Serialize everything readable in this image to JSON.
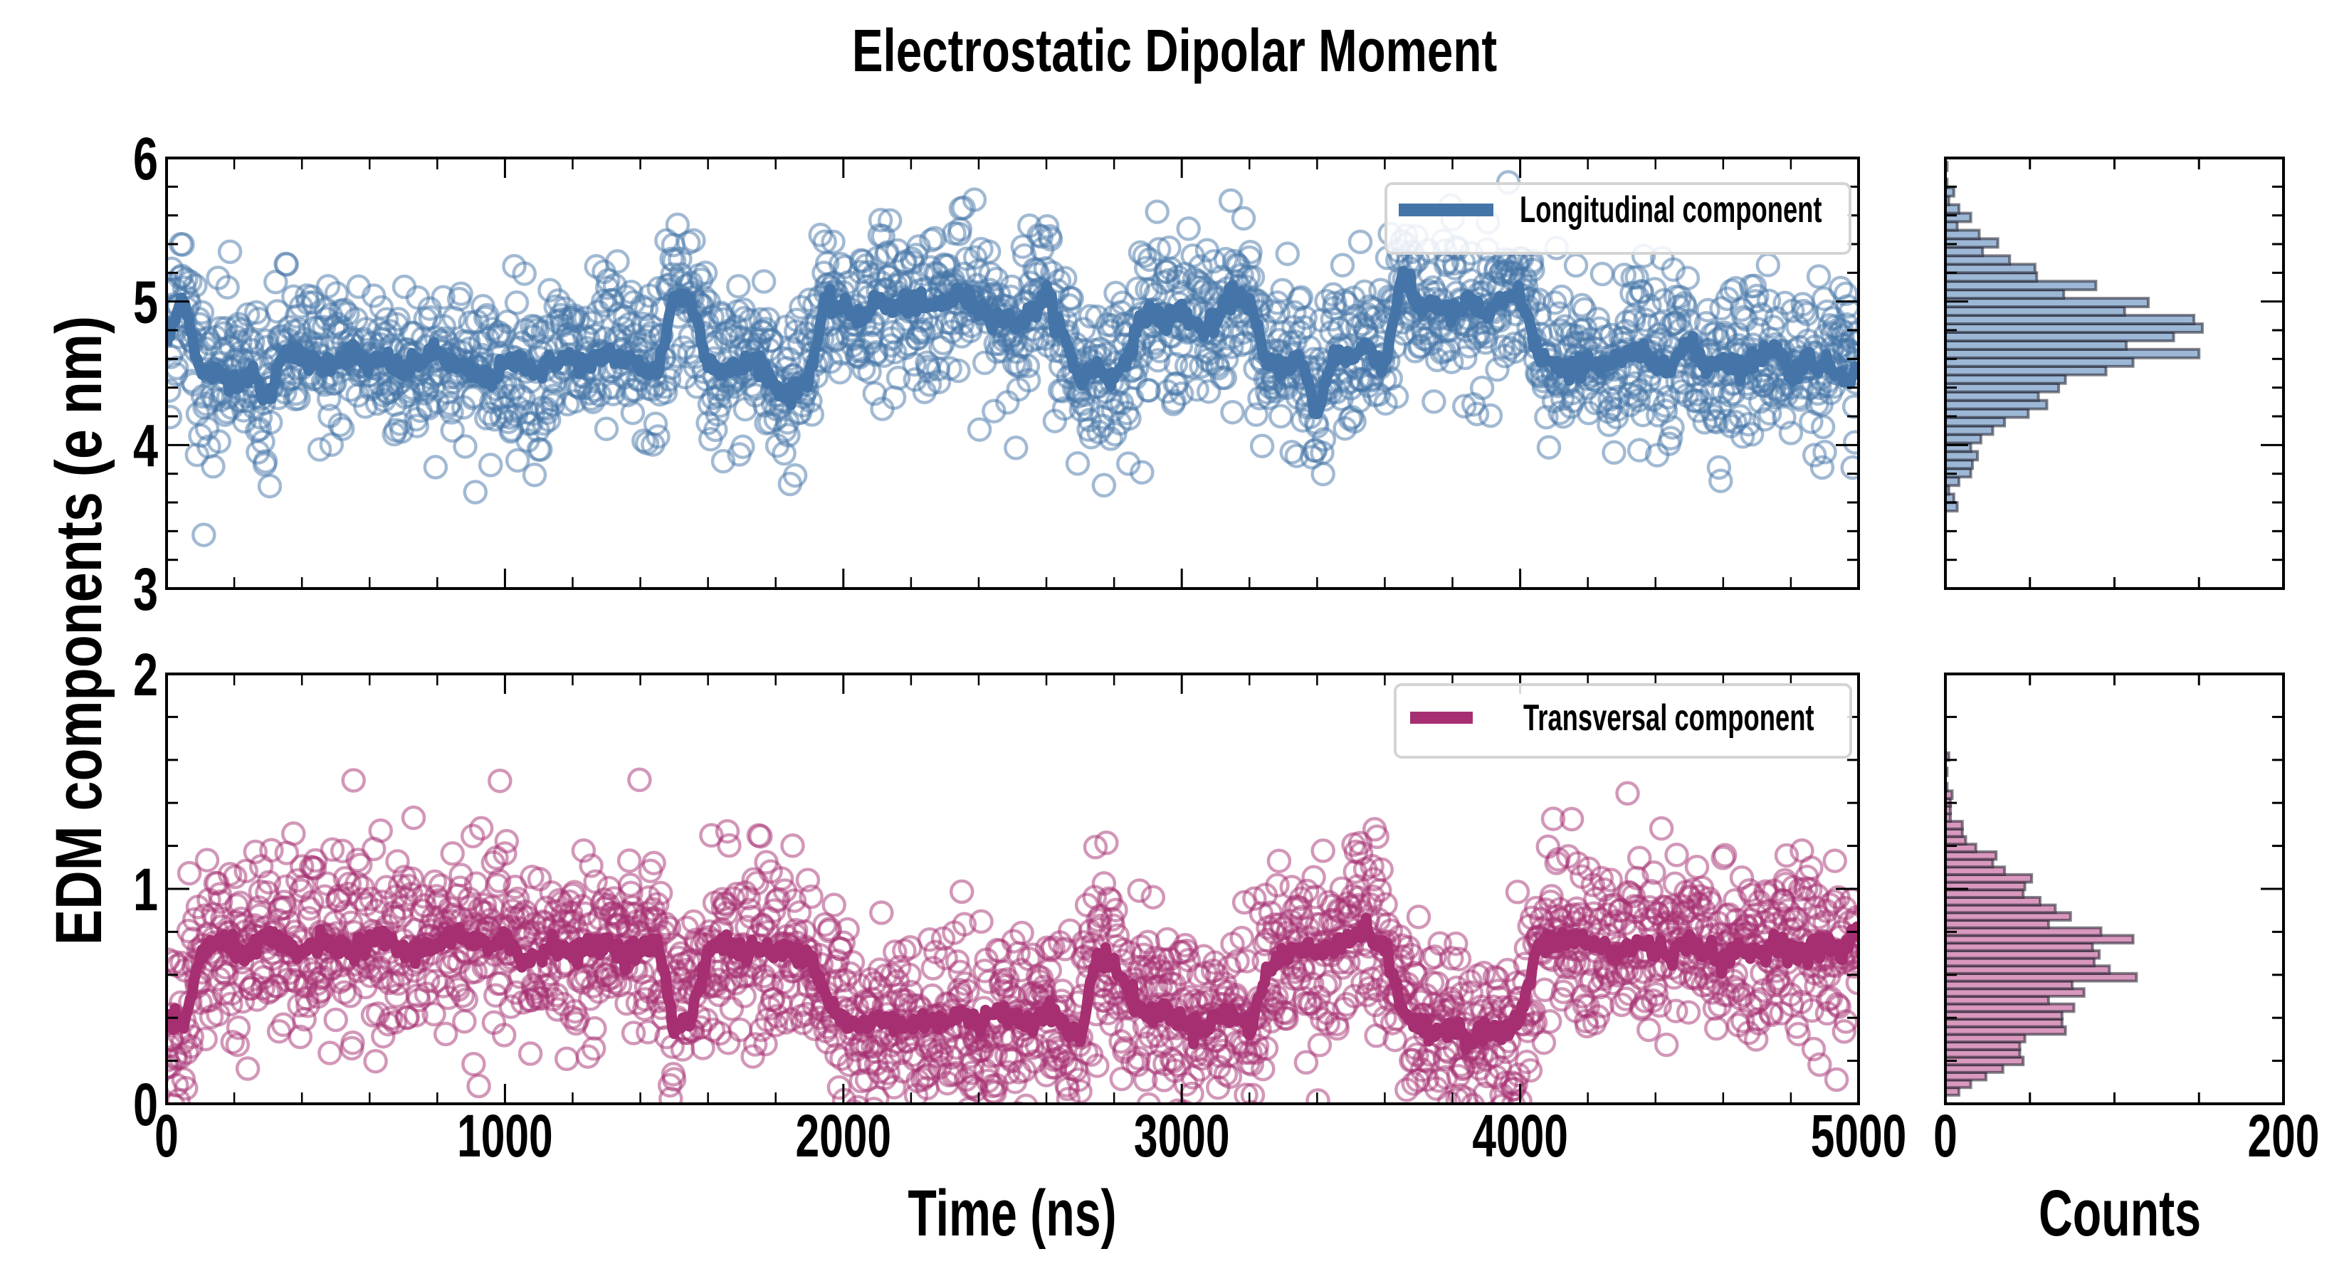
{
  "chart_data": [
    {
      "type": "line",
      "panel": "top",
      "title": "Electrostatic Dipolar Moment",
      "xlabel": "Time (ns)",
      "ylabel": "EDM components (e nm)",
      "xlim": [
        0,
        5000
      ],
      "ylim": [
        3,
        6
      ],
      "xticks": [
        "0",
        "1000",
        "2000",
        "3000",
        "4000",
        "5000"
      ],
      "yticks": [
        "3",
        "4",
        "5",
        "6"
      ],
      "legend": {
        "label": "Longitudinal component",
        "placement": "top-right"
      },
      "color": "#4575a8",
      "x_step": 50,
      "line_values": [
        4.7,
        5.05,
        4.5,
        4.5,
        4.45,
        4.5,
        4.3,
        4.7,
        4.6,
        4.55,
        4.6,
        4.65,
        4.55,
        4.6,
        4.5,
        4.6,
        4.65,
        4.55,
        4.5,
        4.45,
        4.55,
        4.6,
        4.5,
        4.6,
        4.6,
        4.55,
        4.65,
        4.6,
        4.55,
        4.5,
        5.05,
        5.0,
        4.6,
        4.5,
        4.55,
        4.6,
        4.4,
        4.35,
        4.5,
        5.0,
        4.95,
        4.9,
        5.0,
        4.95,
        5.0,
        4.95,
        5.0,
        5.05,
        4.95,
        4.9,
        4.85,
        4.9,
        5.05,
        4.75,
        4.45,
        4.55,
        4.45,
        4.7,
        4.95,
        4.85,
        4.95,
        4.8,
        4.85,
        5.05,
        5.0,
        4.55,
        4.55,
        4.6,
        4.2,
        4.65,
        4.6,
        4.7,
        4.55,
        5.2,
        4.95,
        5.0,
        4.9,
        5.0,
        4.9,
        5.0,
        5.05,
        4.65,
        4.55,
        4.5,
        4.6,
        4.55,
        4.6,
        4.65,
        4.55,
        4.6,
        4.7,
        4.55,
        4.6,
        4.55,
        4.6,
        4.7,
        4.5,
        4.6,
        4.55,
        4.5,
        4.5
      ],
      "scatter_spread": 0.28
    },
    {
      "type": "line",
      "panel": "bottom",
      "xlabel": "Time (ns)",
      "xlim": [
        0,
        5000
      ],
      "ylim": [
        0,
        2
      ],
      "xticks": [
        "0",
        "1000",
        "2000",
        "3000",
        "4000",
        "5000"
      ],
      "yticks": [
        "0",
        "1",
        "2"
      ],
      "legend": {
        "label": "Transversal component",
        "placement": "top-right"
      },
      "color": "#a62f72",
      "x_step": 50,
      "line_values": [
        0.4,
        0.35,
        0.7,
        0.75,
        0.72,
        0.7,
        0.78,
        0.72,
        0.7,
        0.75,
        0.72,
        0.72,
        0.74,
        0.78,
        0.7,
        0.72,
        0.75,
        0.78,
        0.75,
        0.72,
        0.8,
        0.65,
        0.7,
        0.75,
        0.7,
        0.72,
        0.75,
        0.7,
        0.72,
        0.75,
        0.35,
        0.4,
        0.72,
        0.75,
        0.7,
        0.72,
        0.7,
        0.72,
        0.7,
        0.5,
        0.38,
        0.35,
        0.4,
        0.38,
        0.36,
        0.4,
        0.38,
        0.42,
        0.36,
        0.45,
        0.4,
        0.38,
        0.45,
        0.36,
        0.3,
        0.7,
        0.65,
        0.5,
        0.4,
        0.45,
        0.38,
        0.35,
        0.4,
        0.42,
        0.35,
        0.6,
        0.7,
        0.72,
        0.7,
        0.75,
        0.78,
        0.8,
        0.72,
        0.45,
        0.35,
        0.32,
        0.38,
        0.3,
        0.35,
        0.32,
        0.4,
        0.72,
        0.75,
        0.78,
        0.75,
        0.72,
        0.7,
        0.75,
        0.72,
        0.7,
        0.75,
        0.72,
        0.65,
        0.72,
        0.7,
        0.75,
        0.72,
        0.7,
        0.75,
        0.7,
        0.82
      ],
      "scatter_spread": 0.22
    },
    {
      "type": "bar",
      "orientation": "horizontal",
      "panel": "top-histogram",
      "xlabel": "Counts",
      "xlim": [
        0,
        200
      ],
      "ylim": [
        3,
        6
      ],
      "color": "#9db8d6",
      "bin_start": 3.54,
      "bin_width": 0.0593,
      "counts": [
        7,
        5,
        2,
        8,
        15,
        16,
        19,
        15,
        21,
        28,
        35,
        49,
        60,
        55,
        67,
        71,
        95,
        111,
        150,
        107,
        135,
        152,
        147,
        106,
        120,
        70,
        89,
        54,
        53,
        38,
        22,
        31,
        20,
        7,
        15,
        8,
        2,
        5,
        1,
        0,
        1
      ]
    },
    {
      "type": "bar",
      "orientation": "horizontal",
      "panel": "bottom-histogram",
      "xlabel": "Counts",
      "xlim": [
        0,
        200
      ],
      "ylim": [
        0,
        2
      ],
      "xticks": [
        "0",
        "200"
      ],
      "color": "#d998bd",
      "bin_start": 0.04,
      "bin_width": 0.0354,
      "counts": [
        8,
        15,
        24,
        34,
        46,
        44,
        44,
        47,
        71,
        69,
        69,
        76,
        61,
        82,
        75,
        113,
        97,
        88,
        91,
        87,
        111,
        92,
        61,
        74,
        65,
        56,
        46,
        47,
        51,
        35,
        28,
        30,
        18,
        12,
        10,
        10,
        3,
        3,
        3,
        4,
        1,
        0,
        1,
        0,
        2
      ]
    }
  ]
}
